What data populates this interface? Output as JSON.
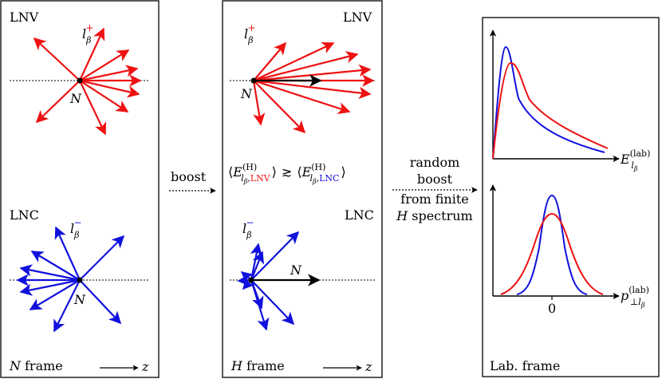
{
  "colors": {
    "lnv": "#ee1111",
    "lnc": "#1111dd",
    "ink": "#000000"
  },
  "panel_n_frame": {
    "lnv_label": "LNV",
    "lnc_label": "LNC",
    "lepton_plus": "l",
    "lepton_plus_sub": "β",
    "lepton_plus_sup": "+",
    "lepton_minus": "l",
    "lepton_minus_sub": "β",
    "lepton_minus_sup": "−",
    "n_label_top": "N",
    "n_label_bottom": "N",
    "frame_italic": "N",
    "frame_text": "frame",
    "z_label": "z"
  },
  "boost_label": "boost",
  "panel_h_frame": {
    "lnv_label": "LNV",
    "lnc_label": "LNC",
    "lepton_plus": "l",
    "lepton_plus_sub": "β",
    "lepton_plus_sup": "+",
    "lepton_minus": "l",
    "lepton_minus_sub": "β",
    "lepton_minus_sup": "−",
    "n_label_top": "N",
    "n_label_bottom": "N",
    "energy_relation": {
      "open": "⟨",
      "energy_symbol": "E",
      "superscript": "(H)",
      "lepton_sub": "l",
      "lepton_subsub": "β",
      "lnv_tag": "LNV",
      "relation": "≳",
      "lnc_tag": "LNC",
      "close": "⟩"
    },
    "frame_italic": "H",
    "frame_text": "frame",
    "z_label": "z"
  },
  "random_boost_caption": [
    "random",
    "boost",
    "from finite"
  ],
  "random_boost_last_italic": "H",
  "random_boost_last_text": "spectrum",
  "panel_lab_frame": {
    "frame_label": "Lab. frame",
    "energy_axis": {
      "symbol": "E",
      "sup": "(lab)",
      "sub": "l",
      "subsub": "β"
    },
    "pt_axis": {
      "symbol": "p",
      "sup": "(lab)",
      "sub": "⊥l",
      "subsub": "β"
    },
    "zero_tick": "0"
  }
}
